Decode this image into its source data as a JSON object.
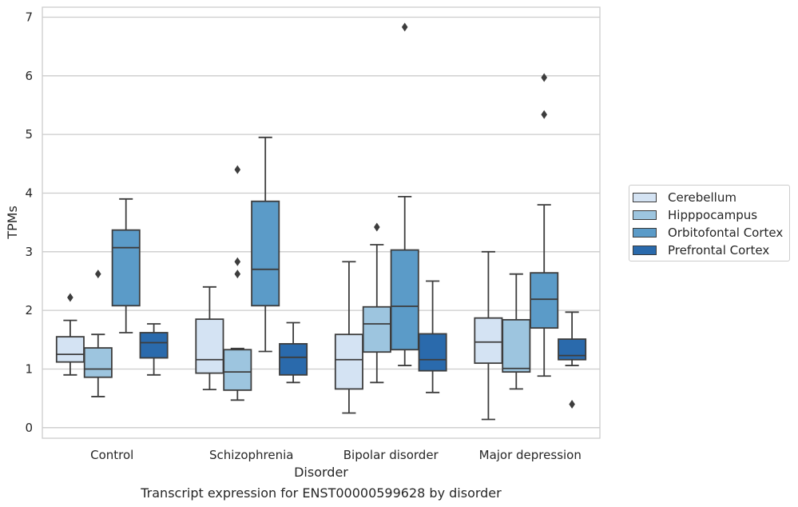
{
  "chart_data": {
    "type": "box",
    "title": "Transcript expression for ENST00000599628 by disorder",
    "xlabel": "Disorder",
    "ylabel": "TPMs",
    "ylim": [
      -0.18,
      7.17
    ],
    "yticks": [
      "0",
      "1",
      "2",
      "3",
      "4",
      "5",
      "6",
      "7"
    ],
    "grid": "horizontal",
    "legend_position": "right",
    "categories": [
      "Control",
      "Schizophrenia",
      "Bipolar disorder",
      "Major depression"
    ],
    "series": [
      {
        "name": "Cerebellum",
        "color": "#d4e3f3",
        "boxes": [
          {
            "whislo": 0.9,
            "q1": 1.12,
            "med": 1.25,
            "q3": 1.55,
            "whishi": 1.83,
            "fliers": [
              2.22
            ]
          },
          {
            "whislo": 0.65,
            "q1": 0.93,
            "med": 1.16,
            "q3": 1.85,
            "whishi": 2.4,
            "fliers": []
          },
          {
            "whislo": 0.25,
            "q1": 0.66,
            "med": 1.16,
            "q3": 1.59,
            "whishi": 2.83,
            "fliers": []
          },
          {
            "whislo": 0.14,
            "q1": 1.1,
            "med": 1.46,
            "q3": 1.87,
            "whishi": 3.0,
            "fliers": []
          }
        ]
      },
      {
        "name": "Hipppocampus",
        "color": "#9dc5df",
        "boxes": [
          {
            "whislo": 0.53,
            "q1": 0.86,
            "med": 1.0,
            "q3": 1.36,
            "whishi": 1.59,
            "fliers": [
              2.62
            ]
          },
          {
            "whislo": 0.47,
            "q1": 0.64,
            "med": 0.95,
            "q3": 1.33,
            "whishi": 1.35,
            "fliers": [
              4.4,
              2.83,
              2.62
            ]
          },
          {
            "whislo": 0.77,
            "q1": 1.29,
            "med": 1.77,
            "q3": 2.06,
            "whishi": 3.12,
            "fliers": [
              3.42
            ]
          },
          {
            "whislo": 0.66,
            "q1": 0.95,
            "med": 1.01,
            "q3": 1.84,
            "whishi": 2.62,
            "fliers": []
          }
        ]
      },
      {
        "name": "Orbitofontal Cortex",
        "color": "#5b9bc8",
        "boxes": [
          {
            "whislo": 1.62,
            "q1": 2.08,
            "med": 3.07,
            "q3": 3.37,
            "whishi": 3.9,
            "fliers": []
          },
          {
            "whislo": 1.3,
            "q1": 2.08,
            "med": 2.7,
            "q3": 3.86,
            "whishi": 4.95,
            "fliers": []
          },
          {
            "whislo": 1.06,
            "q1": 1.33,
            "med": 2.07,
            "q3": 3.03,
            "whishi": 3.94,
            "fliers": [
              6.83
            ]
          },
          {
            "whislo": 0.88,
            "q1": 1.7,
            "med": 2.19,
            "q3": 2.64,
            "whishi": 3.8,
            "fliers": [
              5.97,
              5.34
            ]
          }
        ]
      },
      {
        "name": "Prefrontal Cortex",
        "color": "#2a6aac",
        "boxes": [
          {
            "whislo": 0.9,
            "q1": 1.19,
            "med": 1.45,
            "q3": 1.62,
            "whishi": 1.77,
            "fliers": []
          },
          {
            "whislo": 0.77,
            "q1": 0.9,
            "med": 1.2,
            "q3": 1.43,
            "whishi": 1.79,
            "fliers": []
          },
          {
            "whislo": 0.6,
            "q1": 0.97,
            "med": 1.16,
            "q3": 1.6,
            "whishi": 2.5,
            "fliers": []
          },
          {
            "whislo": 1.06,
            "q1": 1.16,
            "med": 1.23,
            "q3": 1.51,
            "whishi": 1.97,
            "fliers": [
              0.4
            ]
          }
        ]
      }
    ]
  }
}
